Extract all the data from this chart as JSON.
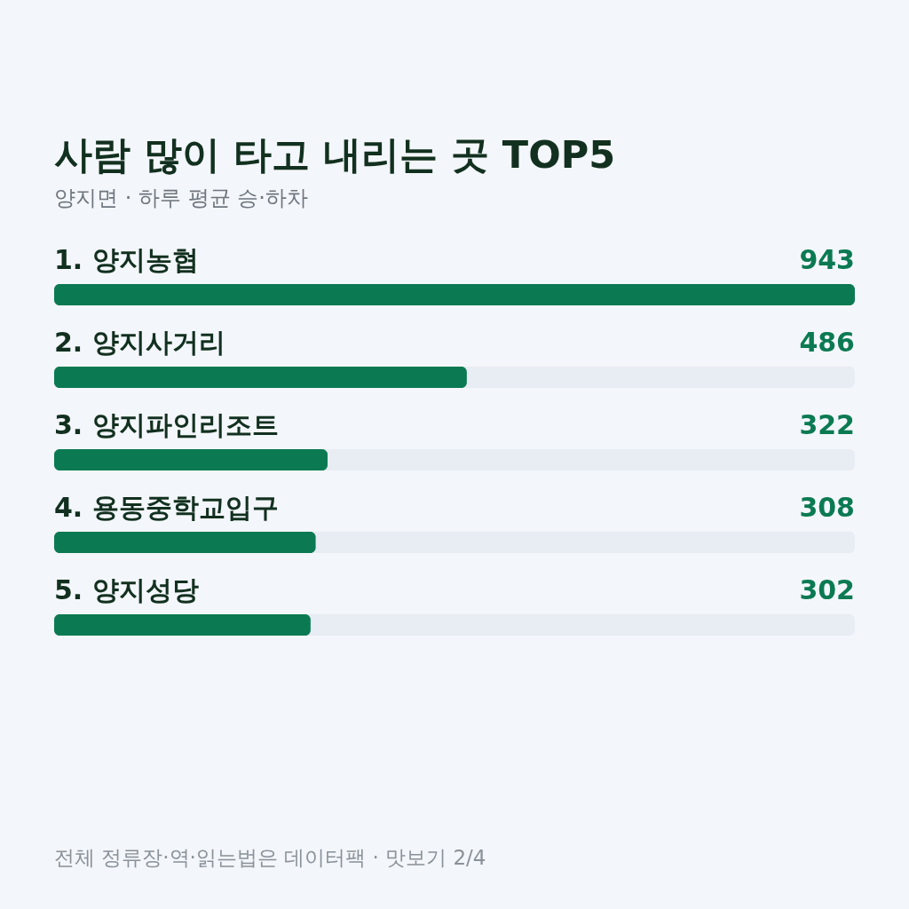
{
  "chart_data": {
    "type": "bar",
    "orientation": "horizontal",
    "title": "사람 많이 타고 내리는 곳 TOP5",
    "subtitle": "양지면 · 하루 평균 승·하차",
    "categories": [
      "1. 양지농협",
      "2. 양지사거리",
      "3. 양지파인리조트",
      "4. 용동중학교입구",
      "5. 양지성당"
    ],
    "values": [
      943,
      486,
      322,
      308,
      302
    ],
    "color": "#0b7a52",
    "data_labels": true,
    "annotations": [
      "전체 정류장·역·읽는법은 데이터팩 · 맛보기 2/4"
    ]
  }
}
